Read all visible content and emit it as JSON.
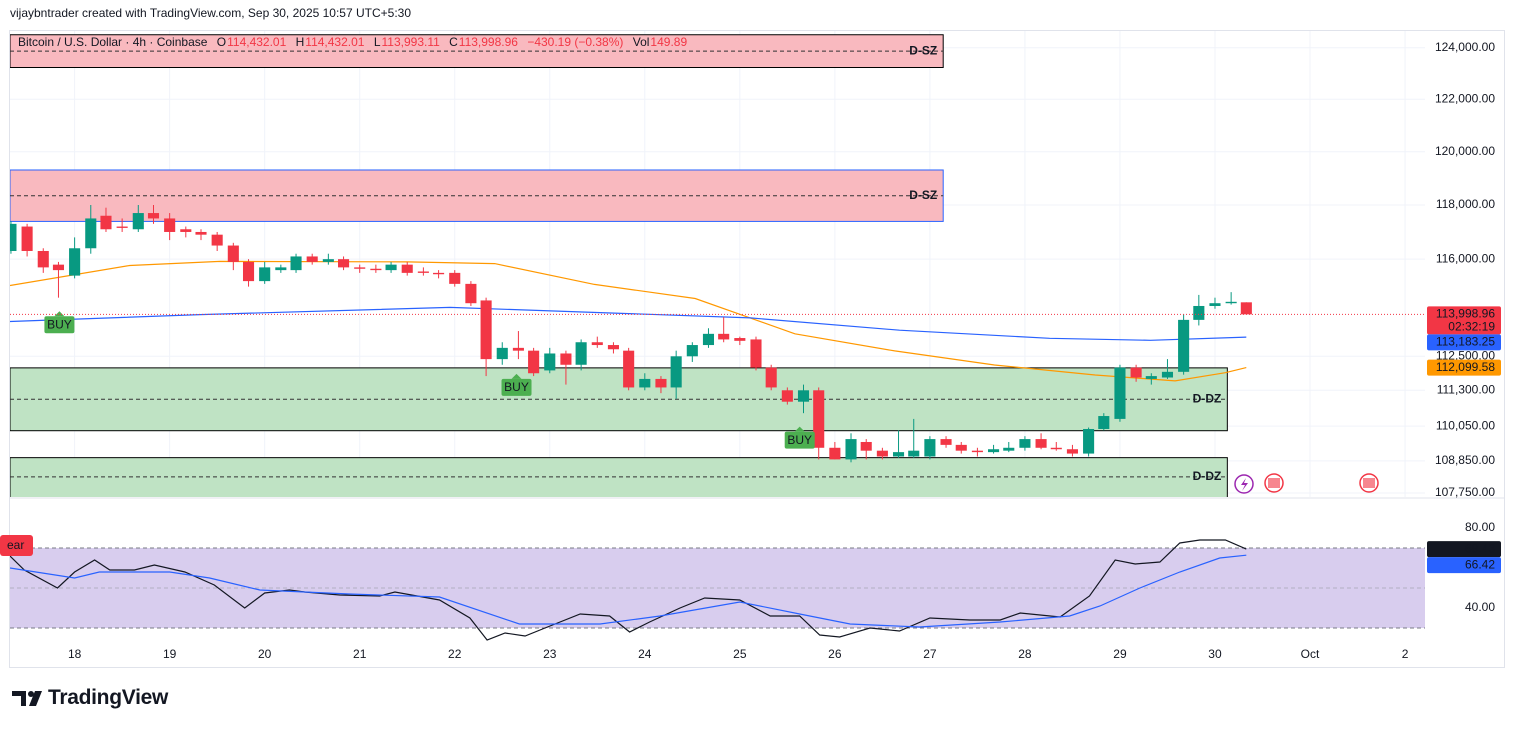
{
  "header": {
    "credit": "vijaybntrader created with TradingView.com, Sep 30, 2025 10:57 UTC+5:30",
    "legend": {
      "symbol": "Bitcoin / U.S. Dollar · 4h · Coinbase",
      "o_label": "O",
      "o": "114,432.01",
      "h_label": "H",
      "h": "114,432.01",
      "l_label": "L",
      "l": "113,993.11",
      "c_label": "C",
      "c": "113,998.96",
      "change": "−430.19 (−0.38%)",
      "vol_label": "Vol",
      "vol": "149.89"
    }
  },
  "footer": {
    "brand": "TradingView"
  },
  "chart_data": [
    {
      "type": "candlestick",
      "log": true,
      "grid": true,
      "up_color": "#089981",
      "down_color": "#f23645",
      "xlim": [
        17.32,
        32.21
      ],
      "xticks": [
        18,
        19,
        20,
        21,
        22,
        23,
        24,
        25,
        26,
        27,
        28,
        29,
        30,
        {
          "value": 31,
          "label": "Oct"
        },
        {
          "value": 32,
          "label": "2"
        }
      ],
      "ylim": [
        107650,
        124500
      ],
      "yticks": [
        {
          "value": 124000,
          "label": "124,000.00"
        },
        {
          "value": 122000,
          "label": "122,000.00"
        },
        {
          "value": 120000,
          "label": "120,000.00"
        },
        {
          "value": 118000,
          "label": "118,000.00"
        },
        {
          "value": 116000,
          "label": "116,000.00"
        },
        {
          "value": 112500,
          "label": "112,500.00"
        },
        {
          "value": 111300,
          "label": "111,300.00"
        },
        {
          "value": 110050,
          "label": "110,050.00"
        },
        {
          "value": 108850,
          "label": "108,850.00"
        },
        {
          "value": 107750,
          "label": "107,750.00"
        }
      ],
      "x": [
        17.33,
        17.5,
        17.67,
        17.83,
        18,
        18.17,
        18.33,
        18.5,
        18.67,
        18.83,
        19,
        19.17,
        19.33,
        19.5,
        19.67,
        19.83,
        20,
        20.17,
        20.33,
        20.5,
        20.67,
        20.83,
        21,
        21.17,
        21.33,
        21.5,
        21.67,
        21.83,
        22,
        22.17,
        22.33,
        22.5,
        22.67,
        22.83,
        23,
        23.17,
        23.33,
        23.5,
        23.67,
        23.83,
        24,
        24.17,
        24.33,
        24.5,
        24.67,
        24.83,
        25,
        25.17,
        25.33,
        25.5,
        25.67,
        25.83,
        26,
        26.17,
        26.33,
        26.5,
        26.67,
        26.83,
        27,
        27.17,
        27.33,
        27.5,
        27.67,
        27.83,
        28,
        28.17,
        28.33,
        28.5,
        28.67,
        28.83,
        29,
        29.17,
        29.33,
        29.5,
        29.67,
        29.83,
        30,
        30.17,
        30.33
      ],
      "open": [
        116300,
        117200,
        116300,
        115800,
        115400,
        116400,
        117600,
        117200,
        117100,
        117700,
        117500,
        117100,
        117000,
        116900,
        116500,
        115900,
        115200,
        115600,
        115600,
        116100,
        115900,
        116000,
        115700,
        115650,
        115600,
        115800,
        115550,
        115500,
        115500,
        115100,
        114500,
        112400,
        112800,
        112700,
        112000,
        112600,
        112200,
        113000,
        112900,
        112700,
        111400,
        111700,
        111400,
        112500,
        112900,
        113300,
        113150,
        113100,
        112100,
        111300,
        110900,
        111300,
        109300,
        108900,
        109500,
        109200,
        109000,
        109000,
        109000,
        109600,
        109400,
        109200,
        109150,
        109200,
        109300,
        109600,
        109300,
        109250,
        109100,
        109950,
        110300,
        112100,
        111700,
        111750,
        111950,
        113800,
        114300,
        114400,
        114432.01
      ],
      "high": [
        117400,
        117300,
        116400,
        115900,
        116800,
        118000,
        117900,
        117500,
        118000,
        118000,
        117700,
        117200,
        117100,
        117000,
        116600,
        116000,
        115900,
        115800,
        116200,
        116200,
        116200,
        116100,
        115800,
        115800,
        115900,
        115900,
        115700,
        115600,
        115600,
        115200,
        114600,
        113000,
        113400,
        112800,
        112800,
        112700,
        113100,
        113200,
        113000,
        112800,
        111900,
        111800,
        112700,
        113000,
        113500,
        113900,
        113200,
        113200,
        112200,
        111400,
        111500,
        111400,
        109500,
        109800,
        109600,
        109300,
        109900,
        110300,
        109700,
        109700,
        109500,
        109300,
        109400,
        109500,
        109700,
        109800,
        109500,
        109400,
        110000,
        110500,
        112200,
        112200,
        111900,
        112400,
        114000,
        114700,
        114600,
        114800,
        114432.01
      ],
      "low": [
        116200,
        116100,
        115500,
        114600,
        115300,
        116200,
        117000,
        117000,
        117000,
        117300,
        116700,
        116800,
        116700,
        116300,
        115600,
        115000,
        115100,
        115500,
        115500,
        115800,
        115800,
        115600,
        115500,
        115500,
        115500,
        115400,
        115400,
        115300,
        115000,
        114300,
        111800,
        112200,
        112400,
        111800,
        111900,
        111500,
        112000,
        112800,
        112600,
        111300,
        111300,
        111200,
        111000,
        112300,
        112800,
        113000,
        112900,
        112000,
        111300,
        110800,
        110500,
        108900,
        108900,
        108800,
        108900,
        108900,
        108950,
        108950,
        108900,
        109300,
        109100,
        109000,
        109100,
        109150,
        109200,
        109250,
        109200,
        109000,
        109000,
        109900,
        110200,
        111600,
        111500,
        111700,
        111850,
        113600,
        114200,
        114350,
        113993.11
      ],
      "close": [
        117300,
        116300,
        115700,
        115600,
        116400,
        117500,
        117100,
        117150,
        117700,
        117500,
        117000,
        117000,
        116900,
        116500,
        115900,
        115200,
        115700,
        115700,
        116100,
        115900,
        116000,
        115700,
        115650,
        115600,
        115800,
        115500,
        115500,
        115450,
        115100,
        114400,
        112400,
        112800,
        112700,
        111900,
        112600,
        112200,
        113000,
        112900,
        112750,
        111400,
        111700,
        111400,
        112500,
        112900,
        113300,
        113100,
        113050,
        112100,
        111400,
        110900,
        111300,
        109300,
        108900,
        109600,
        109200,
        109000,
        109150,
        109200,
        109600,
        109400,
        109200,
        109150,
        109250,
        109300,
        109600,
        109300,
        109250,
        109100,
        109950,
        110400,
        112100,
        111750,
        111800,
        111950,
        113800,
        114300,
        114400,
        114450,
        113998.96
      ],
      "overlays": [
        {
          "color": "#ff9800",
          "x": [
            17.32,
            18.58,
            19.53,
            21.5,
            22.42,
            23.47,
            24.53,
            25.58,
            26.63,
            27.68,
            28.74,
            29.58,
            30.11,
            30.33
          ],
          "values": [
            115040,
            115770,
            115920,
            115900,
            115840,
            115080,
            114570,
            113300,
            112690,
            112190,
            111840,
            111630,
            111920,
            112100
          ]
        },
        {
          "color": "#2962ff",
          "x": [
            17.32,
            19.32,
            21.95,
            23.53,
            25.11,
            26.68,
            28.26,
            29.32,
            30.33
          ],
          "values": [
            113740,
            113990,
            114250,
            114060,
            113870,
            113430,
            113140,
            113070,
            113183
          ]
        }
      ],
      "zones": [
        {
          "label": "D-SZ",
          "color": "#f9b9bf",
          "border": "#000000",
          "x": [
            17.32,
            27.14
          ],
          "y": [
            123230,
            124510
          ]
        },
        {
          "label": "D-SZ",
          "color": "#f9b9bf",
          "border": "#2962ff",
          "x": [
            17.32,
            27.14
          ],
          "y": [
            117390,
            119310
          ]
        },
        {
          "label": "D-DZ",
          "color": "#bfe3c4",
          "border": "#000000",
          "x": [
            17.32,
            30.13
          ],
          "y": [
            109890,
            112090
          ]
        },
        {
          "label": "D-DZ",
          "color": "#bfe3c4",
          "border": "#000000",
          "x": [
            17.32,
            30.13
          ],
          "y": [
            107500,
            108960
          ]
        }
      ],
      "signals": [
        {
          "label": "BUY",
          "x": 17.84,
          "price": 114110
        },
        {
          "label": "BUY",
          "x": 22.65,
          "price": 111880
        },
        {
          "label": "BUY",
          "x": 25.63,
          "price": 110030
        }
      ],
      "price_labels": [
        {
          "value": 113998.96,
          "label": "113,998.96",
          "color": "#f23645",
          "sub": "02:32:19"
        },
        {
          "value": 113183.25,
          "label": "113,183.25",
          "color": "#2962ff"
        },
        {
          "value": 112099.58,
          "label": "112,099.58",
          "color": "#ff9800"
        }
      ]
    },
    {
      "type": "line",
      "xlim": [
        17.32,
        32.21
      ],
      "ylim": [
        10,
        94
      ],
      "yticks": [
        {
          "value": 40,
          "label": "40.00"
        },
        {
          "value": 80,
          "label": "80.00"
        }
      ],
      "band": [
        30,
        70
      ],
      "midline": 50,
      "band_color": "#d8cdee",
      "tag": "ear",
      "series": [
        {
          "color": "#131722",
          "x": [
            17.32,
            17.47,
            17.82,
            18,
            18.21,
            18.37,
            18.63,
            18.84,
            19.16,
            19.47,
            19.79,
            20,
            20.26,
            20.42,
            20.79,
            21.21,
            21.37,
            21.84,
            22.16,
            22.34,
            22.53,
            22.74,
            22.95,
            23.32,
            23.63,
            23.84,
            24.05,
            24.37,
            24.63,
            25,
            25.32,
            25.63,
            25.84,
            26.05,
            26.37,
            26.68,
            27,
            27.42,
            27.74,
            27.95,
            28.37,
            28.68,
            28.95,
            29.16,
            29.42,
            29.63,
            29.84,
            30.11,
            30.33
          ],
          "values": [
            66,
            59,
            50,
            58,
            64,
            59,
            59,
            61.5,
            58,
            51.5,
            40,
            47.5,
            49,
            48,
            46.5,
            46,
            48,
            44,
            35,
            24,
            27.5,
            26,
            30,
            37,
            36,
            28,
            33,
            40,
            45,
            44,
            36,
            36,
            26.5,
            25.5,
            30,
            28.5,
            35,
            34,
            34,
            37.5,
            35.5,
            46,
            64,
            62,
            63,
            72.5,
            74,
            74,
            69.43
          ]
        },
        {
          "color": "#2962ff",
          "x": [
            17.32,
            18,
            18.26,
            19,
            19.42,
            19.95,
            20.89,
            21.84,
            22.68,
            23.53,
            24.16,
            25,
            25.63,
            26.16,
            26.89,
            27.74,
            28.47,
            28.79,
            29.21,
            29.63,
            30.05,
            30.33
          ],
          "values": [
            60,
            55,
            58,
            58,
            55,
            49,
            47,
            45.5,
            32,
            32,
            36,
            43,
            37,
            32,
            30.5,
            33,
            36,
            41,
            50,
            58,
            65,
            66.42
          ]
        }
      ]
    }
  ]
}
